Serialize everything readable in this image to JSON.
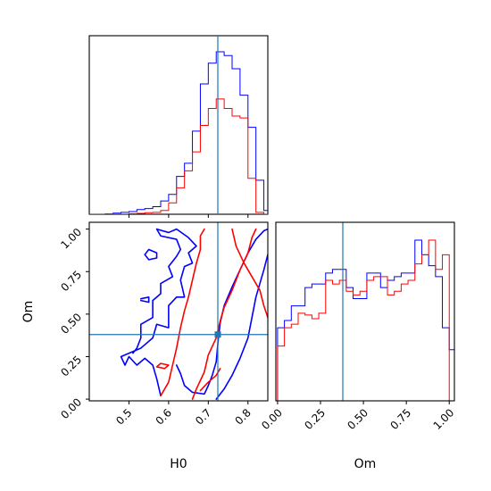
{
  "colors": {
    "series_blue": "#0000ff",
    "series_red": "#ff0000",
    "truth": "#1f77b4"
  },
  "chart_data": [
    {
      "type": "histogram",
      "panel": "top-left",
      "param": "H0",
      "truth": 0.724,
      "xlim": [
        0.4,
        0.85
      ],
      "bin_edges": [
        0.4,
        0.42,
        0.44,
        0.46,
        0.48,
        0.5,
        0.52,
        0.54,
        0.56,
        0.58,
        0.6,
        0.62,
        0.64,
        0.66,
        0.68,
        0.7,
        0.72,
        0.74,
        0.76,
        0.78,
        0.8,
        0.82,
        0.84,
        0.86
      ],
      "series": [
        {
          "color": "blue",
          "counts": [
            0,
            0,
            0.2,
            0.6,
            1.0,
            1.4,
            2.5,
            3.0,
            4.0,
            7.0,
            10.5,
            20,
            27,
            44,
            69,
            80,
            86,
            84,
            77,
            63,
            46,
            18,
            2
          ]
        },
        {
          "color": "red",
          "counts": [
            0,
            0,
            0,
            0,
            0,
            0.3,
            0.5,
            0.8,
            1.0,
            2.0,
            6.0,
            14,
            23,
            33,
            47,
            56,
            61,
            56,
            52,
            51,
            19,
            1,
            0
          ]
        }
      ]
    },
    {
      "type": "contour",
      "panel": "bottom-left",
      "x_param": "H0",
      "y_param": "Om",
      "truth": {
        "x": 0.724,
        "y": 0.38
      },
      "xlim": [
        0.4,
        0.85
      ],
      "ylim": [
        -0.01,
        1.04
      ],
      "x_ticks": [
        "0.5",
        "0.6",
        "0.7",
        "0.8"
      ],
      "y_ticks": [
        "0.00",
        "0.25",
        "0.50",
        "0.75",
        "1.00"
      ],
      "xlabel": "H0",
      "ylabel": "Om",
      "series": [
        {
          "color": "blue",
          "contours": [
            [
              [
                0.58,
                0.02
              ],
              [
                0.57,
                0.12
              ],
              [
                0.56,
                0.2
              ],
              [
                0.54,
                0.24
              ],
              [
                0.52,
                0.2
              ],
              [
                0.5,
                0.25
              ],
              [
                0.49,
                0.2
              ],
              [
                0.48,
                0.25
              ],
              [
                0.53,
                0.3
              ],
              [
                0.56,
                0.36
              ],
              [
                0.57,
                0.44
              ],
              [
                0.6,
                0.42
              ],
              [
                0.6,
                0.55
              ],
              [
                0.62,
                0.6
              ],
              [
                0.64,
                0.6
              ],
              [
                0.63,
                0.7
              ],
              [
                0.64,
                0.78
              ],
              [
                0.66,
                0.8
              ],
              [
                0.65,
                0.86
              ],
              [
                0.67,
                0.9
              ],
              [
                0.65,
                0.95
              ],
              [
                0.62,
                1.0
              ],
              [
                0.6,
                0.98
              ],
              [
                0.57,
                1.0
              ],
              [
                0.58,
                0.96
              ],
              [
                0.62,
                0.94
              ],
              [
                0.63,
                0.88
              ],
              [
                0.62,
                0.84
              ],
              [
                0.6,
                0.78
              ],
              [
                0.61,
                0.72
              ],
              [
                0.58,
                0.68
              ],
              [
                0.58,
                0.62
              ],
              [
                0.56,
                0.58
              ],
              [
                0.56,
                0.48
              ],
              [
                0.53,
                0.44
              ],
              [
                0.53,
                0.36
              ],
              [
                0.52,
                0.3
              ],
              [
                0.51,
                0.27
              ]
            ],
            [
              [
                0.62,
                0.2
              ],
              [
                0.63,
                0.15
              ],
              [
                0.64,
                0.08
              ],
              [
                0.66,
                0.04
              ],
              [
                0.69,
                0.03
              ],
              [
                0.7,
                0.08
              ],
              [
                0.71,
                0.14
              ],
              [
                0.72,
                0.22
              ],
              [
                0.725,
                0.35
              ],
              [
                0.73,
                0.45
              ],
              [
                0.74,
                0.55
              ],
              [
                0.76,
                0.66
              ],
              [
                0.78,
                0.76
              ],
              [
                0.8,
                0.86
              ],
              [
                0.82,
                0.94
              ],
              [
                0.84,
                0.99
              ],
              [
                0.85,
                1.0
              ]
            ],
            [
              [
                0.72,
                0.0
              ],
              [
                0.74,
                0.06
              ],
              [
                0.76,
                0.14
              ],
              [
                0.78,
                0.24
              ],
              [
                0.8,
                0.36
              ],
              [
                0.81,
                0.48
              ],
              [
                0.82,
                0.6
              ],
              [
                0.84,
                0.76
              ],
              [
                0.85,
                0.85
              ]
            ],
            [
              [
                0.54,
                0.85
              ],
              [
                0.55,
                0.82
              ],
              [
                0.57,
                0.83
              ],
              [
                0.57,
                0.86
              ],
              [
                0.55,
                0.88
              ],
              [
                0.54,
                0.85
              ]
            ],
            [
              [
                0.53,
                0.58
              ],
              [
                0.55,
                0.57
              ],
              [
                0.55,
                0.6
              ],
              [
                0.53,
                0.59
              ]
            ]
          ]
        },
        {
          "color": "red",
          "contours": [
            [
              [
                0.57,
                0.19
              ],
              [
                0.59,
                0.18
              ],
              [
                0.6,
                0.2
              ],
              [
                0.58,
                0.21
              ],
              [
                0.57,
                0.19
              ]
            ],
            [
              [
                0.58,
                0.02
              ],
              [
                0.6,
                0.1
              ],
              [
                0.61,
                0.2
              ],
              [
                0.62,
                0.3
              ],
              [
                0.63,
                0.42
              ],
              [
                0.64,
                0.52
              ],
              [
                0.65,
                0.6
              ],
              [
                0.66,
                0.7
              ],
              [
                0.67,
                0.8
              ],
              [
                0.68,
                0.88
              ],
              [
                0.68,
                0.96
              ],
              [
                0.69,
                1.0
              ]
            ],
            [
              [
                0.66,
                0.0
              ],
              [
                0.67,
                0.06
              ],
              [
                0.69,
                0.16
              ],
              [
                0.7,
                0.26
              ],
              [
                0.72,
                0.36
              ],
              [
                0.73,
                0.46
              ],
              [
                0.74,
                0.54
              ],
              [
                0.76,
                0.64
              ],
              [
                0.78,
                0.76
              ],
              [
                0.8,
                0.86
              ],
              [
                0.81,
                0.95
              ],
              [
                0.82,
                1.0
              ]
            ],
            [
              [
                0.76,
                1.0
              ],
              [
                0.77,
                0.9
              ],
              [
                0.79,
                0.8
              ],
              [
                0.81,
                0.72
              ],
              [
                0.83,
                0.64
              ],
              [
                0.84,
                0.55
              ],
              [
                0.85,
                0.48
              ]
            ],
            [
              [
                0.68,
                0.05
              ],
              [
                0.7,
                0.1
              ],
              [
                0.72,
                0.14
              ],
              [
                0.73,
                0.18
              ]
            ]
          ]
        }
      ]
    },
    {
      "type": "histogram",
      "panel": "bottom-right",
      "param": "Om",
      "truth": 0.38,
      "xlim": [
        -0.01,
        1.03
      ],
      "x_ticks": [
        "0.00",
        "0.25",
        "0.50",
        "0.75",
        "1.00"
      ],
      "xlabel": "Om",
      "bin_edges": [
        0.0,
        0.04,
        0.08,
        0.12,
        0.16,
        0.2,
        0.24,
        0.28,
        0.32,
        0.36,
        0.4,
        0.44,
        0.48,
        0.52,
        0.56,
        0.6,
        0.64,
        0.68,
        0.72,
        0.76,
        0.8,
        0.84,
        0.88,
        0.92,
        0.96,
        1.0,
        1.04
      ],
      "series": [
        {
          "color": "blue",
          "counts": [
            40,
            44,
            52,
            52,
            62,
            64,
            64,
            70,
            72,
            72,
            62,
            56,
            56,
            70,
            70,
            62,
            66,
            68,
            70,
            70,
            88,
            80,
            74,
            68,
            40,
            28
          ]
        },
        {
          "color": "red",
          "counts": [
            30,
            40,
            42,
            48,
            47,
            45,
            48,
            66,
            64,
            66,
            60,
            58,
            60,
            66,
            68,
            68,
            58,
            60,
            64,
            66,
            75,
            80,
            88,
            72,
            80,
            0
          ]
        }
      ]
    }
  ]
}
